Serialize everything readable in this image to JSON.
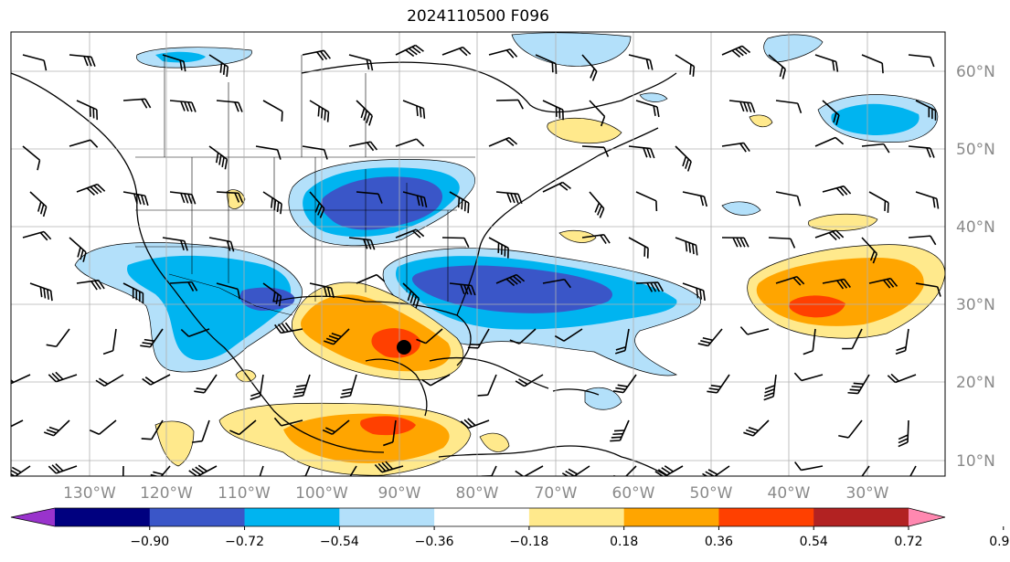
{
  "title": "2024110500 F096",
  "longitude_labels": [
    "130°W",
    "120°W",
    "110°W",
    "100°W",
    "90°W",
    "80°W",
    "70°W",
    "60°W",
    "50°W",
    "40°W",
    "30°W"
  ],
  "latitude_labels": [
    "60°N",
    "50°N",
    "40°N",
    "30°N",
    "20°N",
    "10°N"
  ],
  "colorbar": {
    "ticks": [
      "−0.90",
      "−0.72",
      "−0.54",
      "−0.36",
      "−0.18",
      "0.18",
      "0.36",
      "0.54",
      "0.72",
      "0.90"
    ],
    "colors": [
      "#9933cc",
      "#00007f",
      "#3a56c8",
      "#00b4f0",
      "#b3e0fa",
      "#ffffff",
      "#ffe98c",
      "#ffa500",
      "#ff4000",
      "#b22222",
      "#ff88b0"
    ]
  },
  "fill_colors": {
    "light_blue": "#b3e0fa",
    "blue": "#00b4f0",
    "dark_blue": "#3a56c8",
    "yellow": "#ffe98c",
    "orange": "#ffa500",
    "red": "#ff4000"
  },
  "storm_marker_color": "#000000"
}
